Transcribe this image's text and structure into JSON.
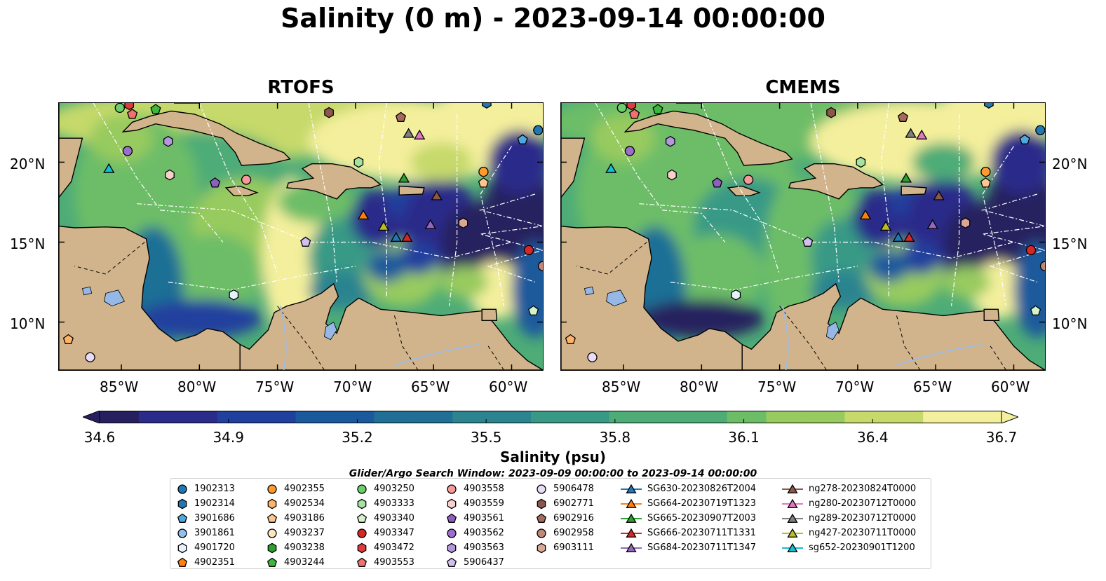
{
  "title": "Salinity (0 m) - 2023-09-14 00:00:00",
  "panels": [
    {
      "title": "RTOFS"
    },
    {
      "title": "CMEMS"
    }
  ],
  "axes": {
    "lon_labels": [
      "85°W",
      "80°W",
      "75°W",
      "70°W",
      "65°W",
      "60°W"
    ],
    "lat_labels": [
      "20°N",
      "15°N",
      "10°N"
    ],
    "lon_range": [
      -89,
      -58
    ],
    "lat_range": [
      7,
      23.7
    ]
  },
  "colorbar": {
    "label": "Salinity (psu)",
    "ticks": [
      "34.6",
      "34.9",
      "35.2",
      "35.5",
      "35.8",
      "36.1",
      "36.4",
      "36.7"
    ],
    "min": 34.6,
    "max": 36.7,
    "colormap": [
      "#27205e",
      "#2b2b8a",
      "#21409e",
      "#1a5a9c",
      "#1f6f96",
      "#2c8490",
      "#389a86",
      "#4eac77",
      "#6dbd67",
      "#98cb5f",
      "#c6d96a",
      "#f4ef9c"
    ],
    "land_color": "#d2b48c"
  },
  "legend_title": "Glider/Argo Search Window: 2023-09-09 00:00:00 to 2023-09-14 00:00:00",
  "legend": [
    {
      "label": "1902313",
      "marker": "circle",
      "color": "#1f77b4"
    },
    {
      "label": "1902314",
      "marker": "hexagon",
      "color": "#1f77b4"
    },
    {
      "label": "3901686",
      "marker": "pentagon",
      "color": "#4fa8e0"
    },
    {
      "label": "3901861",
      "marker": "circle",
      "color": "#8fc0ee"
    },
    {
      "label": "4901720",
      "marker": "hexagon",
      "color": "#e6f1fb"
    },
    {
      "label": "4902351",
      "marker": "pentagon",
      "color": "#ff7f0e"
    },
    {
      "label": "4902355",
      "marker": "circle",
      "color": "#ff9a2e"
    },
    {
      "label": "4902534",
      "marker": "hexagon",
      "color": "#ffb366"
    },
    {
      "label": "4903186",
      "marker": "pentagon",
      "color": "#ffc58e"
    },
    {
      "label": "4903237",
      "marker": "circle",
      "color": "#ffe4c0"
    },
    {
      "label": "4903238",
      "marker": "hexagon",
      "color": "#2ca02c"
    },
    {
      "label": "4903244",
      "marker": "pentagon",
      "color": "#3cb83c"
    },
    {
      "label": "4903250",
      "marker": "circle",
      "color": "#6ccf6c"
    },
    {
      "label": "4903333",
      "marker": "hexagon",
      "color": "#a6e3a0"
    },
    {
      "label": "4903340",
      "marker": "pentagon",
      "color": "#d4f2cc"
    },
    {
      "label": "4903347",
      "marker": "circle",
      "color": "#d62728"
    },
    {
      "label": "4903472",
      "marker": "hexagon",
      "color": "#e03a3e"
    },
    {
      "label": "4903553",
      "marker": "pentagon",
      "color": "#f07070"
    },
    {
      "label": "4903558",
      "marker": "circle",
      "color": "#f59a9a"
    },
    {
      "label": "4903559",
      "marker": "hexagon",
      "color": "#fbd0cc"
    },
    {
      "label": "4903561",
      "marker": "pentagon",
      "color": "#8c5fc0"
    },
    {
      "label": "4903562",
      "marker": "circle",
      "color": "#9a70cc"
    },
    {
      "label": "4903563",
      "marker": "hexagon",
      "color": "#b496dd"
    },
    {
      "label": "5906437",
      "marker": "pentagon",
      "color": "#d2bff0"
    },
    {
      "label": "5906478",
      "marker": "circle",
      "color": "#e8dcf8"
    },
    {
      "label": "6902771",
      "marker": "hexagon",
      "color": "#8c564b"
    },
    {
      "label": "6902916",
      "marker": "pentagon",
      "color": "#a66a5c"
    },
    {
      "label": "6902958",
      "marker": "circle",
      "color": "#c08878"
    },
    {
      "label": "6903111",
      "marker": "hexagon",
      "color": "#dba896"
    },
    {
      "label": "SG630-20230826T2004",
      "marker": "triangle-line",
      "color": "#1f77b4"
    },
    {
      "label": "SG664-20230719T1323",
      "marker": "triangle-line",
      "color": "#ff7f0e"
    },
    {
      "label": "SG665-20230907T2003",
      "marker": "triangle-line",
      "color": "#2ca02c"
    },
    {
      "label": "SG666-20230711T1331",
      "marker": "triangle-line",
      "color": "#d62728"
    },
    {
      "label": "SG684-20230711T1347",
      "marker": "triangle-line",
      "color": "#9467bd"
    },
    {
      "label": "ng278-20230824T0000",
      "marker": "triangle-line",
      "color": "#8c564b"
    },
    {
      "label": "ng280-20230712T0000",
      "marker": "triangle-line",
      "color": "#e377c2"
    },
    {
      "label": "ng289-20230712T0000",
      "marker": "triangle-line",
      "color": "#7f7f7f"
    },
    {
      "label": "ng427-20230711T0000",
      "marker": "triangle-line",
      "color": "#bcbd22"
    },
    {
      "label": "sg652-20230901T1200",
      "marker": "triangle-line",
      "color": "#17becf"
    }
  ],
  "markers": [
    {
      "id": "1902313",
      "lon": -58.3,
      "lat": 22.0,
      "marker": "circle",
      "color": "#1f77b4"
    },
    {
      "id": "1902314",
      "lon": -61.6,
      "lat": 23.7,
      "marker": "hexagon",
      "color": "#1f77b4"
    },
    {
      "id": "3901686",
      "lon": -59.3,
      "lat": 21.4,
      "marker": "pentagon",
      "color": "#4fa8e0"
    },
    {
      "id": "4902355",
      "lon": -61.8,
      "lat": 19.4,
      "marker": "circle",
      "color": "#ff9a2e"
    },
    {
      "id": "4903186",
      "lon": -61.8,
      "lat": 18.7,
      "marker": "pentagon",
      "color": "#ffc58e"
    },
    {
      "id": "4903250",
      "lon": -85.1,
      "lat": 23.4,
      "marker": "circle",
      "color": "#6ccf6c"
    },
    {
      "id": "4903244",
      "lon": -82.8,
      "lat": 23.3,
      "marker": "pentagon",
      "color": "#3cb83c"
    },
    {
      "id": "4903333",
      "lon": -69.8,
      "lat": 20.0,
      "marker": "hexagon",
      "color": "#a6e3a0"
    },
    {
      "id": "4903340",
      "lon": -58.6,
      "lat": 10.7,
      "marker": "pentagon",
      "color": "#d4f2cc"
    },
    {
      "id": "4903347",
      "lon": -58.9,
      "lat": 14.5,
      "marker": "circle",
      "color": "#d62728"
    },
    {
      "id": "4903472",
      "lon": -84.5,
      "lat": 23.6,
      "marker": "hexagon",
      "color": "#e03a3e"
    },
    {
      "id": "4903553",
      "lon": -84.3,
      "lat": 23.0,
      "marker": "pentagon",
      "color": "#f07070"
    },
    {
      "id": "4903558",
      "lon": -77.0,
      "lat": 18.9,
      "marker": "circle",
      "color": "#f59a9a"
    },
    {
      "id": "4903559",
      "lon": -81.9,
      "lat": 19.2,
      "marker": "hexagon",
      "color": "#fbd0cc"
    },
    {
      "id": "4903561",
      "lon": -79.0,
      "lat": 18.7,
      "marker": "pentagon",
      "color": "#8c5fc0"
    },
    {
      "id": "4903562",
      "lon": -84.6,
      "lat": 20.7,
      "marker": "circle",
      "color": "#9a70cc"
    },
    {
      "id": "4903563",
      "lon": -82.0,
      "lat": 21.3,
      "marker": "hexagon",
      "color": "#b496dd"
    },
    {
      "id": "5906437",
      "lon": -73.2,
      "lat": 15.0,
      "marker": "pentagon",
      "color": "#d2bff0"
    },
    {
      "id": "5906478",
      "lon": -87.0,
      "lat": 7.8,
      "marker": "circle",
      "color": "#e8dcf8"
    },
    {
      "id": "4901720",
      "lon": -77.8,
      "lat": 11.7,
      "marker": "hexagon",
      "color": "#e6f1fb"
    },
    {
      "id": "6902771",
      "lon": -71.7,
      "lat": 23.1,
      "marker": "hexagon",
      "color": "#8c564b"
    },
    {
      "id": "6902916",
      "lon": -67.1,
      "lat": 22.8,
      "marker": "pentagon",
      "color": "#a66a5c"
    },
    {
      "id": "6902958",
      "lon": -58.0,
      "lat": 13.5,
      "marker": "circle",
      "color": "#c08878"
    },
    {
      "id": "6903111",
      "lon": -63.1,
      "lat": 16.2,
      "marker": "hexagon",
      "color": "#dba896"
    },
    {
      "id": "4903238-b",
      "lon": -88.4,
      "lat": 8.9,
      "marker": "pentagon",
      "color": "#ffb366"
    },
    {
      "id": "SG630",
      "lon": -67.4,
      "lat": 15.3,
      "marker": "triangle",
      "color": "#1f77b4"
    },
    {
      "id": "SG664",
      "lon": -69.5,
      "lat": 16.7,
      "marker": "triangle",
      "color": "#ff7f0e"
    },
    {
      "id": "SG665",
      "lon": -66.9,
      "lat": 19.0,
      "marker": "triangle",
      "color": "#2ca02c"
    },
    {
      "id": "SG666",
      "lon": -66.7,
      "lat": 15.3,
      "marker": "triangle",
      "color": "#d62728"
    },
    {
      "id": "SG684",
      "lon": -65.2,
      "lat": 16.1,
      "marker": "triangle",
      "color": "#9467bd"
    },
    {
      "id": "ng278",
      "lon": -64.8,
      "lat": 17.9,
      "marker": "triangle",
      "color": "#8c564b"
    },
    {
      "id": "ng280",
      "lon": -65.9,
      "lat": 21.7,
      "marker": "triangle",
      "color": "#e377c2"
    },
    {
      "id": "ng289",
      "lon": -66.6,
      "lat": 21.8,
      "marker": "triangle",
      "color": "#7f7f7f"
    },
    {
      "id": "ng427",
      "lon": -68.2,
      "lat": 16.0,
      "marker": "triangle",
      "color": "#bcbd22"
    },
    {
      "id": "sg652",
      "lon": -85.8,
      "lat": 19.6,
      "marker": "triangle",
      "color": "#17becf"
    }
  ]
}
